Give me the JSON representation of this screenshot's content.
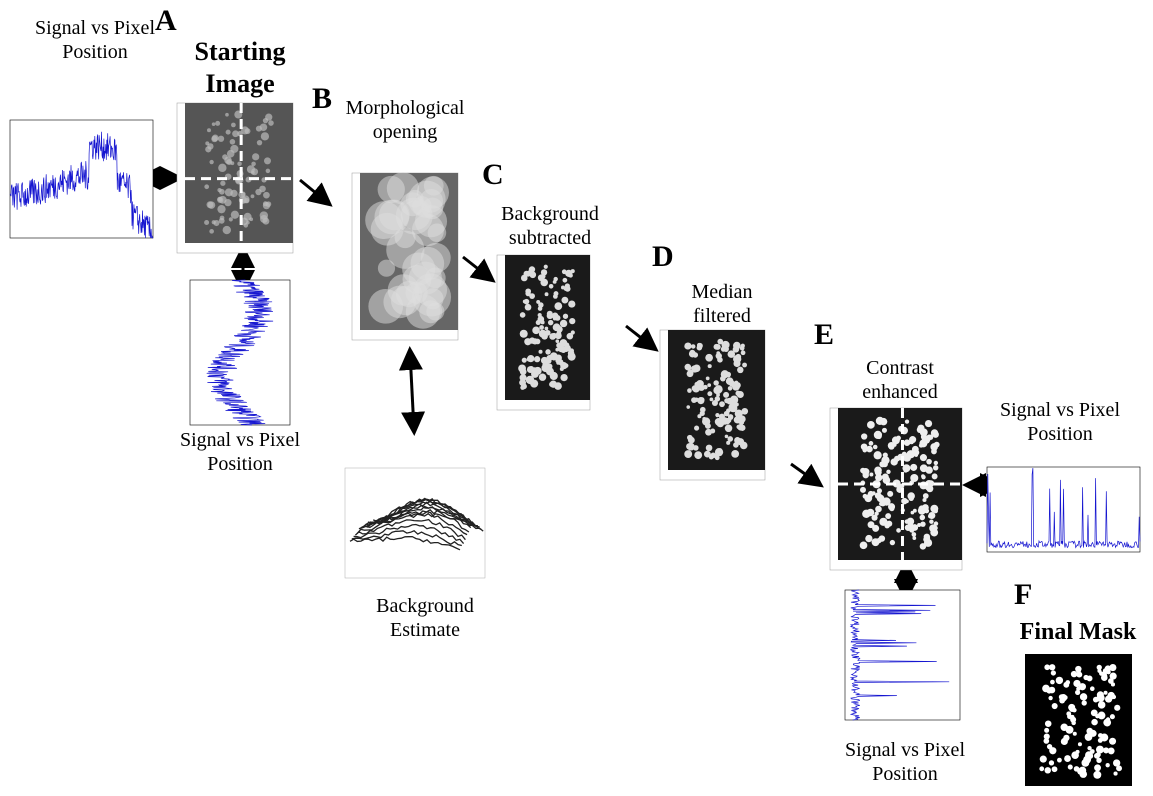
{
  "panels": [
    {
      "letter": "A",
      "title": "Starting Image"
    },
    {
      "letter": "B",
      "title": "Morphological opening"
    },
    {
      "letter": "C",
      "title": "Background subtracted"
    },
    {
      "letter": "D",
      "title": "Median filtered"
    },
    {
      "letter": "E",
      "title": "Contrast enhanced"
    },
    {
      "letter": "F",
      "title": "Final Mask"
    }
  ],
  "profile_labels": [
    "Signal vs Pixel Position",
    "Signal vs Pixel Position",
    "Signal vs Pixel Position",
    "Signal vs Pixel Position"
  ],
  "background_label": "Background Estimate"
}
